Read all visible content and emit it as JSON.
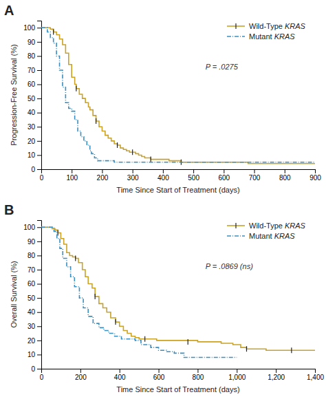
{
  "chart_data": [
    {
      "type": "step",
      "title": "A",
      "xlabel": "Time Since Start of Treatment (days)",
      "ylabel": "Progression-Free Survival (%)",
      "annotations": [
        "P = .0275"
      ],
      "xlim": [
        0,
        900
      ],
      "ylim": [
        0,
        105
      ],
      "xticks": [
        0,
        100,
        200,
        300,
        400,
        500,
        600,
        700,
        800,
        900
      ],
      "yticks": [
        0,
        10,
        20,
        30,
        40,
        50,
        60,
        70,
        80,
        90,
        100
      ],
      "grid": false,
      "legend": "upper right",
      "series": [
        {
          "name": "Wild-Type KRAS",
          "color": "#C9A227",
          "line_style": "solid",
          "marker": "|",
          "x": [
            0,
            25,
            30,
            40,
            50,
            60,
            70,
            80,
            90,
            100,
            110,
            115,
            125,
            135,
            145,
            155,
            160,
            170,
            180,
            190,
            200,
            210,
            220,
            230,
            240,
            250,
            260,
            270,
            280,
            290,
            300,
            310,
            320,
            330,
            340,
            350,
            360,
            370,
            390,
            420,
            450,
            460,
            470,
            490,
            550,
            600,
            680,
            800,
            870,
            900
          ],
          "values": [
            100,
            100,
            99,
            97,
            95,
            92,
            88,
            82,
            74,
            65,
            60,
            57,
            53,
            50,
            47,
            44,
            42,
            38,
            34,
            30,
            27,
            24,
            22,
            20,
            18,
            17,
            15,
            14,
            13,
            12,
            12,
            11,
            10,
            9,
            8,
            8,
            7,
            7,
            7,
            6,
            6,
            5,
            5,
            5,
            5,
            5,
            4,
            4,
            4,
            4
          ],
          "censor_x": [
            40,
            115,
            180,
            250,
            300,
            360,
            460
          ],
          "censor_values": [
            97,
            57,
            34,
            17,
            12,
            7,
            5
          ]
        },
        {
          "name": "Mutant KRAS",
          "color": "#3A8FC0",
          "line_style": "dashdot",
          "x": [
            0,
            20,
            30,
            40,
            50,
            60,
            70,
            80,
            90,
            100,
            110,
            120,
            130,
            140,
            150,
            160,
            165,
            175,
            185,
            200,
            210,
            220,
            240,
            270,
            300,
            400,
            500,
            600,
            700,
            800,
            900
          ],
          "values": [
            100,
            97,
            93,
            89,
            80,
            70,
            58,
            47,
            43,
            41,
            35,
            27,
            23,
            20,
            17,
            13,
            11,
            8,
            6,
            6,
            6,
            6,
            5,
            5,
            5,
            5,
            5,
            5,
            5,
            5,
            5
          ]
        }
      ]
    },
    {
      "type": "step",
      "title": "B",
      "xlabel": "Time Since Start of Treatment (days)",
      "ylabel": "Overall Survival (%)",
      "annotations": [
        "P = .0869 (ns)"
      ],
      "xlim": [
        0,
        1400
      ],
      "ylim": [
        0,
        105
      ],
      "xticks": [
        0,
        200,
        400,
        600,
        800,
        {
          "value": 1000,
          "label": "1,000"
        },
        {
          "value": 1200,
          "label": "1,200"
        },
        {
          "value": 1400,
          "label": "1,400"
        }
      ],
      "yticks": [
        0,
        10,
        20,
        30,
        40,
        50,
        60,
        70,
        80,
        90,
        100
      ],
      "grid": false,
      "legend": "upper right",
      "series": [
        {
          "name": "Wild-Type KRAS",
          "color": "#C9A227",
          "line_style": "solid",
          "marker": "|",
          "x": [
            0,
            45,
            55,
            70,
            85,
            100,
            115,
            130,
            145,
            160,
            175,
            190,
            210,
            225,
            240,
            260,
            275,
            295,
            315,
            335,
            355,
            380,
            400,
            420,
            440,
            460,
            480,
            500,
            530,
            560,
            590,
            620,
            660,
            700,
            750,
            800,
            860,
            920,
            980,
            1000,
            1020,
            1050,
            1100,
            1150,
            1200,
            1280,
            1350,
            1400
          ],
          "values": [
            100,
            100,
            99,
            98,
            96,
            92,
            88,
            82,
            80,
            79,
            78,
            75,
            70,
            65,
            60,
            57,
            51,
            46,
            43,
            40,
            36,
            33,
            30,
            27,
            25,
            23,
            22,
            21,
            21,
            21,
            20,
            20,
            20,
            20,
            20,
            19,
            19,
            18,
            17,
            17,
            15,
            14,
            14,
            13,
            13,
            13,
            13,
            13
          ],
          "censor_x": [
            85,
            175,
            275,
            380,
            530,
            750,
            1050,
            1280
          ],
          "censor_values": [
            96,
            78,
            51,
            33,
            21,
            19,
            14,
            13
          ]
        },
        {
          "name": "Mutant KRAS",
          "color": "#3A8FC0",
          "line_style": "dashdot",
          "x": [
            0,
            50,
            65,
            80,
            95,
            110,
            130,
            150,
            170,
            195,
            215,
            240,
            265,
            295,
            320,
            345,
            375,
            410,
            445,
            480,
            510,
            560,
            600,
            640,
            680,
            730,
            780,
            850,
            950,
            1000
          ],
          "values": [
            100,
            100,
            97,
            92,
            85,
            78,
            72,
            65,
            58,
            50,
            43,
            37,
            32,
            29,
            27,
            25,
            23,
            21,
            21,
            20,
            17,
            15,
            13,
            12,
            11,
            8,
            8,
            8,
            8,
            8
          ]
        }
      ]
    }
  ]
}
